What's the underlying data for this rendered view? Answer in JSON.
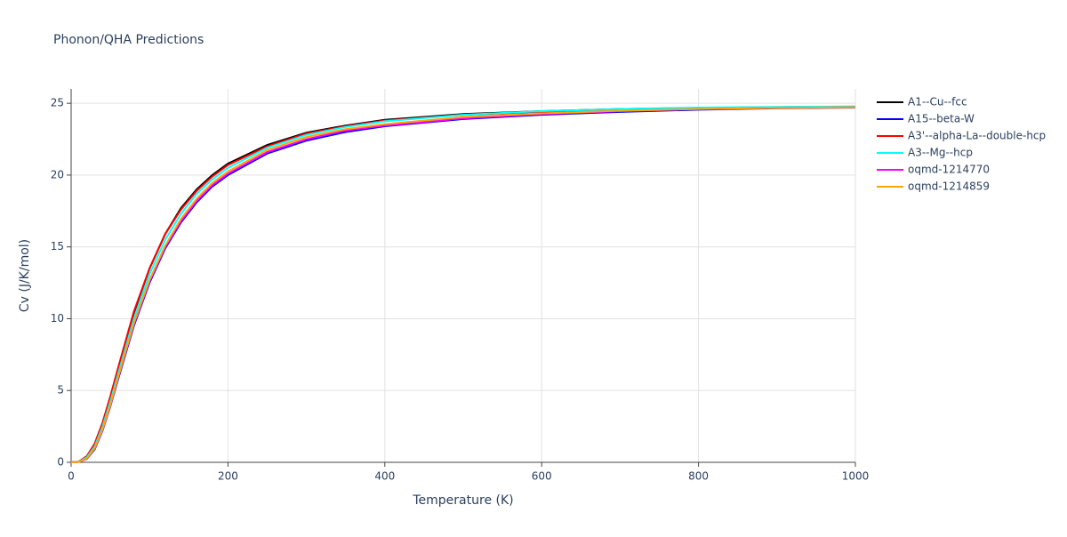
{
  "chart_data": {
    "type": "line",
    "title": "Phonon/QHA Predictions",
    "x_label": "Temperature (K)",
    "y_label": "Cv (J/K/mol)",
    "x": [
      0,
      10,
      20,
      30,
      40,
      50,
      60,
      80,
      100,
      120,
      140,
      160,
      180,
      200,
      250,
      300,
      350,
      400,
      500,
      600,
      700,
      800,
      900,
      1000
    ],
    "series": [
      {
        "name": "A1--Cu--fcc",
        "color": "#000000",
        "values": [
          0,
          0.05,
          0.42,
          1.25,
          2.7,
          4.5,
          6.5,
          10.4,
          13.5,
          15.9,
          17.7,
          19.0,
          20.0,
          20.8,
          22.1,
          22.95,
          23.45,
          23.85,
          24.25,
          24.45,
          24.6,
          24.68,
          24.73,
          24.77
        ]
      },
      {
        "name": "A15--beta-W",
        "color": "#0000ff",
        "values": [
          0,
          0.03,
          0.24,
          0.9,
          2.2,
          3.9,
          5.8,
          9.5,
          12.5,
          14.9,
          16.7,
          18.1,
          19.2,
          20.0,
          21.5,
          22.4,
          23.0,
          23.4,
          23.9,
          24.2,
          24.4,
          24.55,
          24.65,
          24.7
        ]
      },
      {
        "name": "A3'--alpha-La--double-hcp",
        "color": "#ff0000",
        "values": [
          0,
          0.05,
          0.43,
          1.3,
          2.75,
          4.6,
          6.6,
          10.5,
          13.5,
          15.9,
          17.6,
          18.9,
          19.9,
          20.7,
          22.0,
          22.9,
          23.4,
          23.8,
          24.2,
          24.4,
          24.55,
          24.63,
          24.68,
          24.72
        ]
      },
      {
        "name": "A3--Mg--hcp",
        "color": "#00ffff",
        "values": [
          0,
          0.04,
          0.35,
          1.1,
          2.5,
          4.25,
          6.2,
          10.0,
          13.1,
          15.5,
          17.3,
          18.7,
          19.7,
          20.5,
          21.9,
          22.8,
          23.35,
          23.75,
          24.2,
          24.45,
          24.6,
          24.7,
          24.75,
          24.78
        ]
      },
      {
        "name": "oqmd-1214770",
        "color": "#ff00ff",
        "values": [
          0,
          0.03,
          0.26,
          0.95,
          2.25,
          3.95,
          5.9,
          9.6,
          12.6,
          15.0,
          16.8,
          18.2,
          19.3,
          20.1,
          21.6,
          22.5,
          23.1,
          23.45,
          23.95,
          24.25,
          24.45,
          24.6,
          24.68,
          24.72
        ]
      },
      {
        "name": "oqmd-1214859",
        "color": "#ffa500",
        "values": [
          0,
          0.03,
          0.27,
          0.98,
          2.3,
          4.0,
          5.95,
          9.7,
          12.7,
          15.1,
          16.95,
          18.35,
          19.45,
          20.25,
          21.75,
          22.65,
          23.2,
          23.55,
          24.05,
          24.3,
          24.48,
          24.6,
          24.68,
          24.72
        ]
      }
    ],
    "xlim": [
      0,
      1000
    ],
    "ylim": [
      0,
      26
    ],
    "xticks": [
      0,
      200,
      400,
      600,
      800,
      1000
    ],
    "yticks": [
      0,
      5,
      10,
      15,
      20,
      25
    ],
    "grid": true
  }
}
